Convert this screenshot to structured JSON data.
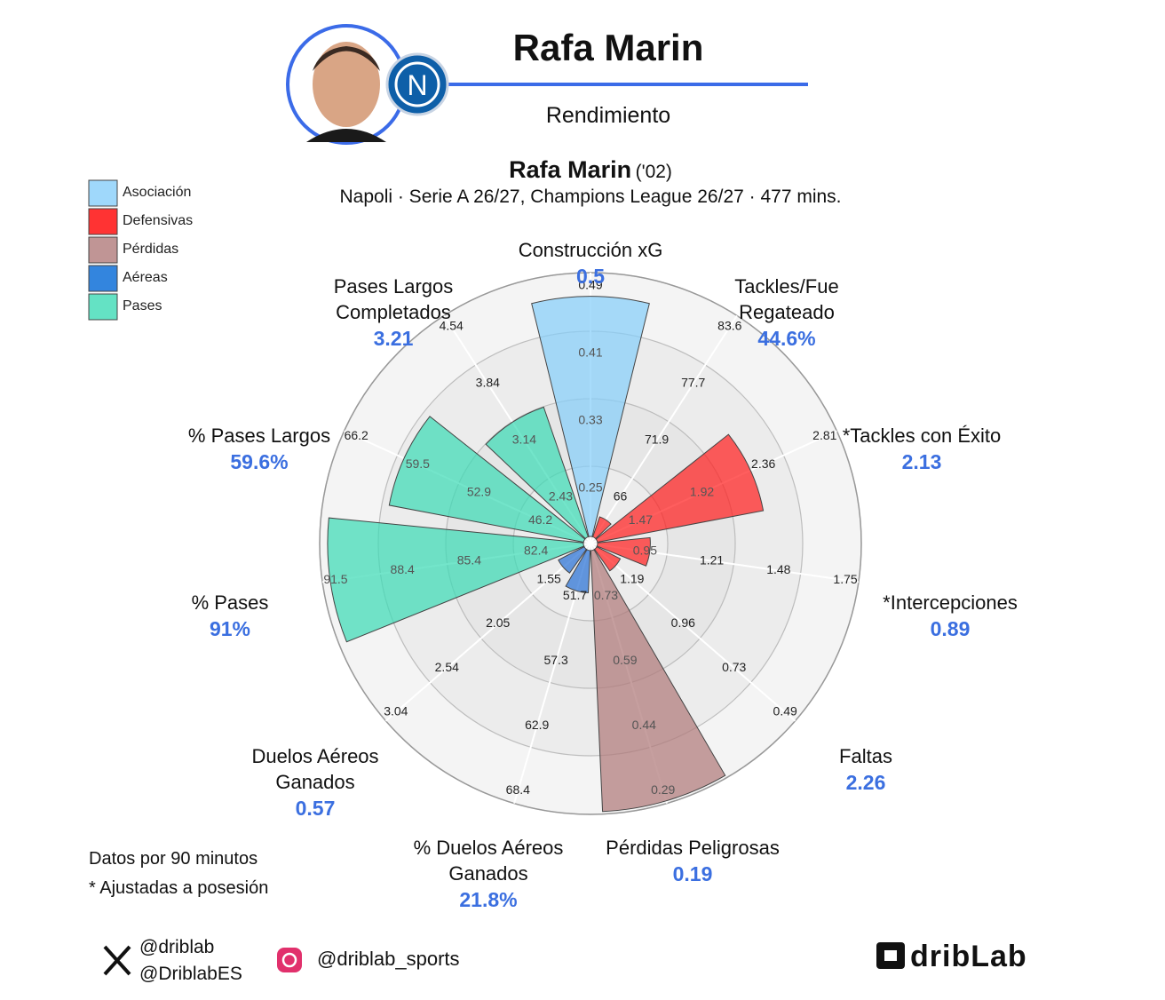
{
  "header": {
    "title": "Rafa Marin",
    "subtitle": "Rendimiento"
  },
  "chart_data": {
    "type": "pizza",
    "title": "Rafa Marin",
    "title_suffix": "('02)",
    "subtitle": "Napoli · Serie A 26/27, Champions League 26/27 · 477 mins.",
    "categories": [
      "Construcción xG",
      "Tackles/Fue\nRegateado",
      "*Tackles con Éxito",
      "*Intercepciones",
      "Faltas",
      "Pérdidas Peligrosas",
      "% Duelos Aéreos\nGanados",
      "Duelos Aéreos\nGanados",
      "% Pases",
      "% Pases Largos",
      "Pases Largos\nCompletados"
    ],
    "values": [
      0.5,
      44.6,
      2.13,
      0.89,
      2.26,
      0.19,
      21.8,
      0.57,
      91,
      59.6,
      3.21
    ],
    "value_labels": [
      "0.5",
      "44.6%",
      "2.13",
      "0.89",
      "2.26",
      "0.19",
      "21.8%",
      "0.57",
      "91%",
      "59.6%",
      "3.21"
    ],
    "percentiles": [
      91,
      8,
      64,
      20,
      10,
      99,
      16,
      11,
      97,
      75,
      52
    ],
    "rlim": [
      0,
      100
    ],
    "colors": [
      "#87cefa",
      "#ff2020",
      "#ff2020",
      "#ff2020",
      "#ff2020",
      "#b07a7a",
      "#2a72d6",
      "#2a72d6",
      "#3ddbb5",
      "#3ddbb5",
      "#3ddbb5"
    ],
    "rticks": [
      [
        0.25,
        0.33,
        0.41,
        0.49
      ],
      [
        66,
        71.9,
        77.7,
        83.6
      ],
      [
        1.47,
        1.92,
        2.36,
        2.81
      ],
      [
        0.95,
        1.21,
        1.48,
        1.75
      ],
      [
        1.19,
        0.96,
        0.73,
        0.49
      ],
      [
        0.73,
        0.59,
        0.44,
        0.29
      ],
      [
        51.7,
        57.3,
        62.9,
        68.4
      ],
      [
        1.55,
        2.05,
        2.54,
        3.04
      ],
      [
        82.4,
        85.4,
        88.4,
        91.5
      ],
      [
        46.2,
        52.9,
        59.5,
        66.2
      ],
      [
        2.43,
        3.14,
        3.84,
        4.54
      ]
    ],
    "legend": [
      {
        "name": "Asociación",
        "color": "#87cefa"
      },
      {
        "name": "Defensivas",
        "color": "#ff0000"
      },
      {
        "name": "Pérdidas",
        "color": "#b07a7a"
      },
      {
        "name": "Aéreas",
        "color": "#0066d6"
      },
      {
        "name": "Pases",
        "color": "#3ddbb5"
      }
    ]
  },
  "notes": [
    "Datos por 90 minutos",
    "* Ajustadas a posesión"
  ],
  "footer": {
    "x_handles": [
      "@driblab",
      "@DriblabES"
    ],
    "instagram": "@driblab_sports",
    "brand": "dribLab"
  }
}
